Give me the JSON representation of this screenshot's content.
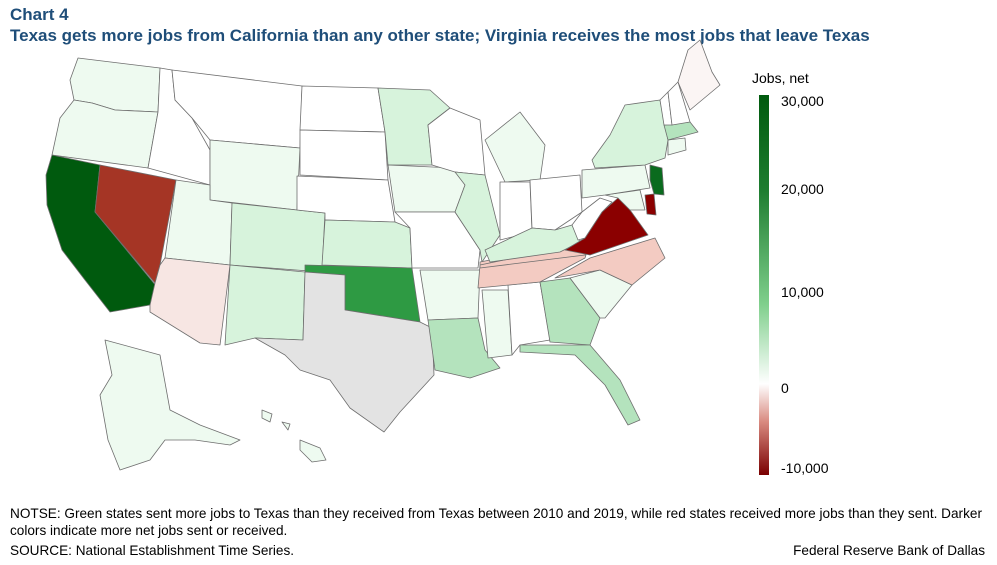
{
  "header": {
    "chart_number": "Chart 4",
    "title": "Texas gets more jobs from California than any other state; Virginia receives the most jobs that leave Texas"
  },
  "legend": {
    "title": "Jobs, net",
    "ticks": [
      "30,000",
      "20,000",
      "10,000",
      "0",
      "-10,000"
    ],
    "colors": {
      "max": "#005a0e",
      "mid": "#ffffff",
      "min": "#7a0000"
    }
  },
  "map": {
    "colors": {
      "none": "#ffffff",
      "faint_green": "#eefaf0",
      "light_green": "#d7f3dc",
      "med_light_green": "#b4e3bd",
      "med_green": "#2e9a43",
      "dark_green": "#0a6b1e",
      "darkest_green": "#005a0e",
      "faint_red": "#f7e6e3",
      "light_red": "#f3cbc2",
      "dark_red": "#a53525",
      "darkest_red": "#8b0000",
      "texas": "#e3e3e3",
      "border": "#6e6e6e"
    }
  },
  "footer": {
    "note": "NOTSE: Green states sent more jobs to Texas than they received from Texas between 2010 and 2019, while red states received more jobs than they sent. Darker colors indicate more net jobs sent or received.",
    "source": "SOURCE: National Establishment Time Series.",
    "credit": "Federal Reserve Bank of Dallas"
  }
}
